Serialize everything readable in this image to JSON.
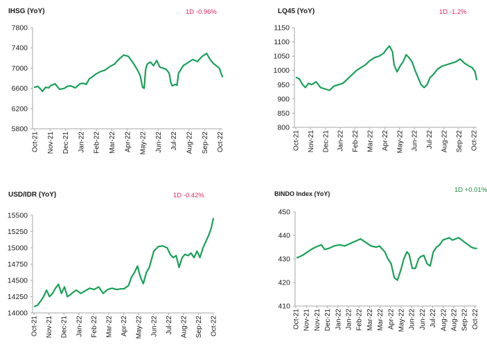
{
  "colors": {
    "line": "#18a058",
    "negative": "#e0245e",
    "positive": "#1a8a3a",
    "axis": "#a6a6a6",
    "text": "#1a1a1a"
  },
  "chart_data": [
    {
      "id": "ihsg",
      "type": "line",
      "title": "IHSG (YoY)",
      "change": "1D -0.96%",
      "change_sign": "negative",
      "ylim": [
        5800,
        7800
      ],
      "yticks": [
        "7800",
        "7400",
        "7000",
        "6600",
        "6200",
        "5800"
      ],
      "ytick_values": [
        7800,
        7400,
        7000,
        6600,
        6200,
        5800
      ],
      "xticks": [
        "Oct-21",
        "Nov-21",
        "Dec-21",
        "Jan-22",
        "Feb-22",
        "Mar-22",
        "Apr-22",
        "May-22",
        "Jun-22",
        "Jul-22",
        "Aug-22",
        "Sep-22",
        "Oct-22"
      ],
      "grid": false,
      "x": [
        0,
        0.2,
        0.4,
        0.5,
        0.7,
        0.9,
        1.0,
        1.3,
        1.6,
        1.9,
        2.1,
        2.3,
        2.6,
        2.9,
        3.1,
        3.3,
        3.5,
        3.7,
        3.9,
        4.2,
        4.5,
        4.8,
        5.1,
        5.4,
        5.7,
        6.0,
        6.3,
        6.6,
        6.75,
        6.9,
        7.0,
        7.05,
        7.1,
        7.2,
        7.4,
        7.6,
        7.8,
        8.0,
        8.2,
        8.4,
        8.6,
        8.7,
        8.8,
        9.0,
        9.1,
        9.2,
        9.5,
        9.8,
        10.1,
        10.4,
        10.7,
        11.0,
        11.2,
        11.4,
        11.6,
        11.8,
        12.0
      ],
      "values": [
        6620,
        6640,
        6580,
        6540,
        6620,
        6610,
        6650,
        6690,
        6580,
        6600,
        6640,
        6650,
        6610,
        6690,
        6700,
        6680,
        6790,
        6830,
        6880,
        6930,
        6960,
        7030,
        7080,
        7180,
        7260,
        7230,
        7100,
        6950,
        6850,
        6620,
        6600,
        6800,
        6980,
        7080,
        7120,
        7050,
        7150,
        7020,
        7000,
        6980,
        6900,
        6720,
        6650,
        6680,
        6660,
        6900,
        7050,
        7110,
        7170,
        7130,
        7230,
        7290,
        7180,
        7100,
        7050,
        7000,
        6830
      ]
    },
    {
      "id": "lq45",
      "type": "line",
      "title": "LQ45 (YoY)",
      "change": "1D -1.2%",
      "change_sign": "negative",
      "ylim": [
        800,
        1150
      ],
      "yticks": [
        "1150",
        "1100",
        "1050",
        "1000",
        "950",
        "900",
        "850",
        "800"
      ],
      "ytick_values": [
        1150,
        1100,
        1050,
        1000,
        950,
        900,
        850,
        800
      ],
      "xticks": [
        "Oct-21",
        "Nov-21",
        "Dec-21",
        "Jan-22",
        "Feb-22",
        "Mar-22",
        "Apr-22",
        "May-22",
        "Jun-22",
        "Jul-22",
        "Aug-22",
        "Sep-22",
        "Oct-22"
      ],
      "grid": false,
      "x": [
        0,
        0.2,
        0.4,
        0.6,
        0.8,
        1.0,
        1.3,
        1.6,
        1.9,
        2.2,
        2.5,
        2.8,
        3.1,
        3.4,
        3.7,
        4.0,
        4.3,
        4.6,
        4.9,
        5.2,
        5.5,
        5.8,
        6.0,
        6.2,
        6.4,
        6.5,
        6.7,
        6.9,
        7.1,
        7.3,
        7.5,
        7.7,
        7.9,
        8.1,
        8.3,
        8.5,
        8.7,
        8.9,
        9.1,
        9.4,
        9.7,
        10.0,
        10.3,
        10.6,
        10.9,
        11.2,
        11.5,
        11.7,
        11.9,
        12.0
      ],
      "values": [
        975,
        970,
        950,
        940,
        955,
        950,
        960,
        940,
        935,
        930,
        945,
        950,
        955,
        970,
        985,
        1000,
        1010,
        1020,
        1035,
        1045,
        1050,
        1060,
        1075,
        1085,
        1065,
        1020,
        995,
        1015,
        1030,
        1055,
        1045,
        1030,
        1000,
        975,
        950,
        940,
        950,
        975,
        985,
        1005,
        1015,
        1020,
        1025,
        1030,
        1040,
        1025,
        1015,
        1010,
        995,
        968
      ]
    },
    {
      "id": "usdidr",
      "type": "line",
      "title": "USD/IDR  (YoY)",
      "change": "1D -0.42%",
      "change_sign": "negative",
      "ylim": [
        14000,
        15500
      ],
      "yticks": [
        "15500",
        "15250",
        "15000",
        "14750",
        "14500",
        "14250",
        "14000"
      ],
      "ytick_values": [
        15500,
        15250,
        15000,
        14750,
        14500,
        14250,
        14000
      ],
      "xticks": [
        "Oct-21",
        "Nov-21",
        "Dec-21",
        "Jan-22",
        "Feb-22",
        "Mar-22",
        "Apr-22",
        "May-22",
        "Jun-22",
        "Jul-22",
        "Aug-22",
        "Sep-22",
        "Oct-22"
      ],
      "grid": false,
      "x": [
        0,
        0.2,
        0.4,
        0.6,
        0.8,
        1.0,
        1.2,
        1.4,
        1.6,
        1.8,
        2.0,
        2.2,
        2.4,
        2.6,
        2.8,
        3.1,
        3.4,
        3.7,
        4.0,
        4.3,
        4.6,
        4.9,
        5.2,
        5.5,
        5.8,
        6.0,
        6.3,
        6.5,
        6.7,
        6.9,
        7.1,
        7.3,
        7.5,
        7.7,
        8.0,
        8.3,
        8.6,
        8.9,
        9.1,
        9.3,
        9.5,
        9.7,
        9.9,
        10.1,
        10.3,
        10.5,
        10.7,
        10.9,
        11.1,
        11.3,
        11.5,
        11.7,
        11.85,
        12.0
      ],
      "values": [
        14100,
        14120,
        14180,
        14250,
        14350,
        14250,
        14300,
        14380,
        14440,
        14300,
        14400,
        14250,
        14280,
        14320,
        14350,
        14300,
        14340,
        14380,
        14360,
        14400,
        14300,
        14360,
        14380,
        14360,
        14370,
        14370,
        14420,
        14550,
        14620,
        14720,
        14550,
        14450,
        14620,
        14700,
        14950,
        15020,
        15030,
        15000,
        14900,
        14850,
        14880,
        14700,
        14850,
        14900,
        14880,
        14920,
        14850,
        14950,
        14850,
        15000,
        15100,
        15200,
        15300,
        15450
      ]
    },
    {
      "id": "bindo",
      "type": "line",
      "title": "BINDO Index (YoY)",
      "change": "1D +0.01%",
      "change_sign": "positive",
      "ylim": [
        410,
        450
      ],
      "yticks": [
        "450",
        "440",
        "430",
        "420",
        "410"
      ],
      "ytick_values": [
        450,
        440,
        430,
        420,
        410
      ],
      "xticks": [
        "Oct-21",
        "Nov-21",
        "Nov-21",
        "Dec-21",
        "Jan-22",
        "Jan-22",
        "Feb-22",
        "Mar-22",
        "Mar-22",
        "Apr-22",
        "May-22",
        "Jun-22",
        "Jun-22",
        "Jul-22",
        "Aug-22",
        "Aug-22",
        "Sep-22",
        "Oct-22"
      ],
      "grid": false,
      "x": [
        0,
        0.5,
        1.0,
        1.5,
        2.0,
        2.3,
        2.6,
        3.0,
        3.5,
        4.0,
        4.5,
        5.0,
        5.5,
        6.0,
        6.5,
        7.0,
        7.5,
        7.8,
        8.0,
        8.3,
        8.6,
        8.9,
        9.2,
        9.5,
        9.8,
        10.1,
        10.4,
        10.6,
        10.9,
        11.2,
        11.5,
        11.7,
        12.0,
        12.3,
        12.6,
        12.9,
        13.2,
        13.5,
        13.8,
        14.1,
        14.4,
        14.7,
        15.0,
        15.3,
        15.6,
        15.9,
        16.2,
        16.5,
        16.8,
        17.0
      ],
      "values": [
        430.5,
        431.5,
        433,
        434.5,
        435.5,
        436,
        434,
        434.5,
        435.5,
        436,
        435.5,
        436.5,
        437.5,
        438.5,
        437,
        435.5,
        435,
        435.5,
        434.5,
        433,
        430,
        428,
        422,
        421,
        425,
        430,
        433,
        432,
        426,
        426,
        430,
        431,
        431.5,
        428,
        427,
        433,
        435,
        436,
        438,
        438.5,
        439,
        438,
        438.5,
        439,
        438,
        437,
        436,
        435,
        434.5,
        434.5
      ]
    }
  ]
}
